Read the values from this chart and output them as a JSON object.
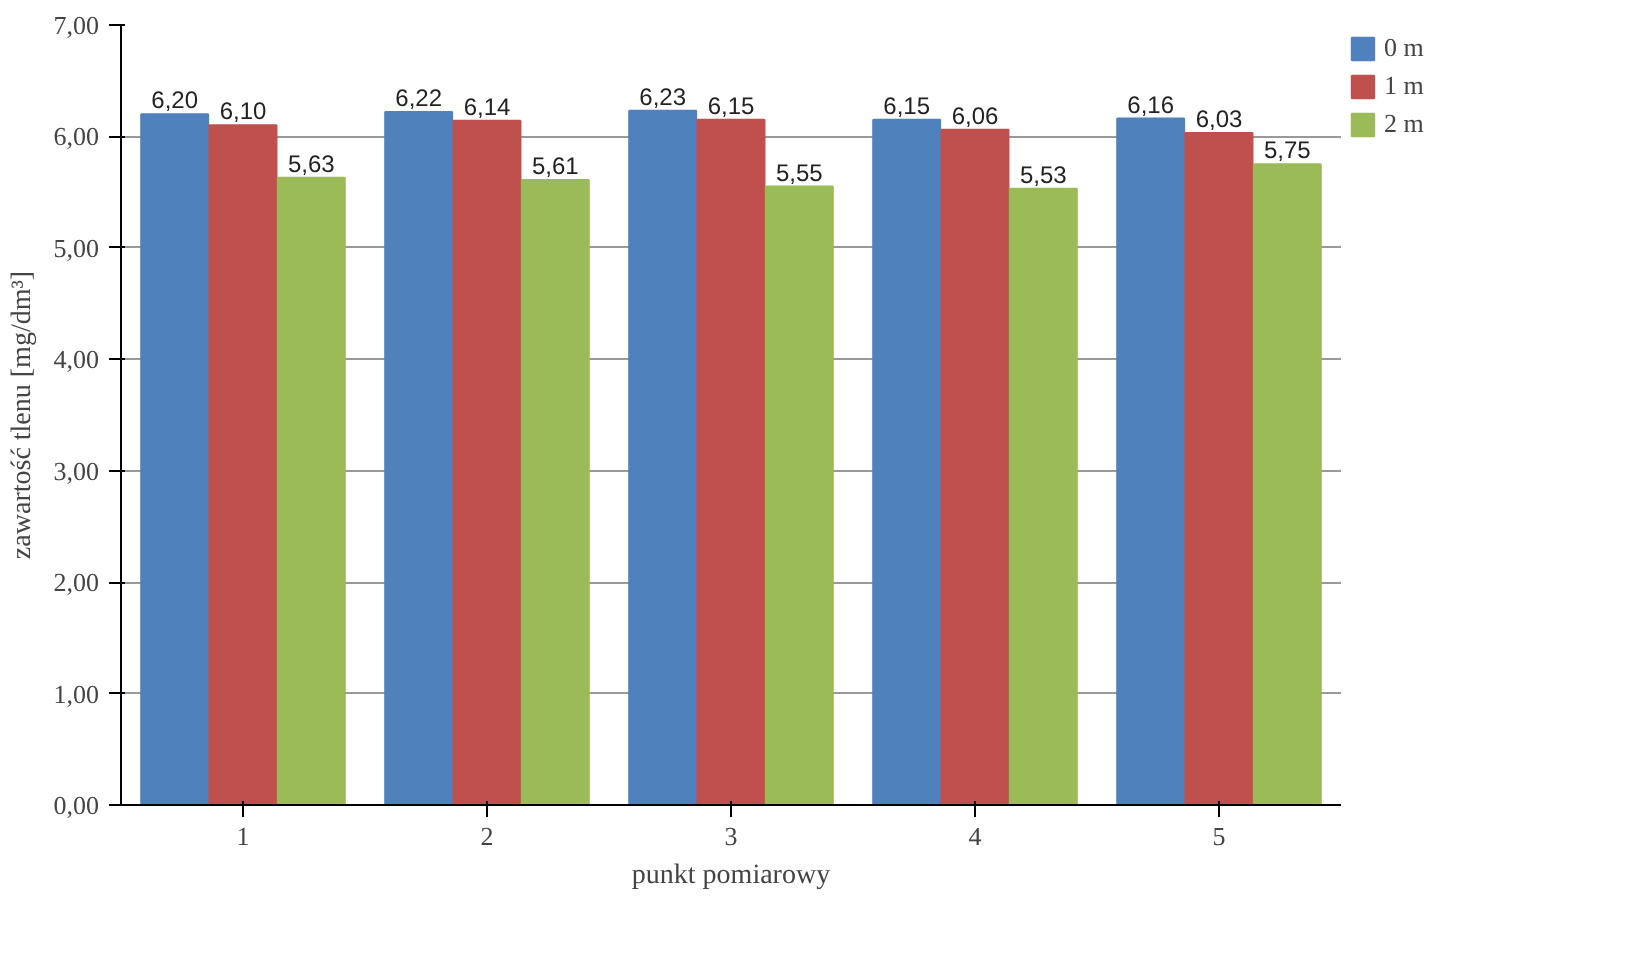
{
  "chart_data": {
    "type": "bar",
    "xlabel": "punkt pomiarowy",
    "ylabel": "zawartość tlenu [mg/dm³]",
    "categories": [
      "1",
      "2",
      "3",
      "4",
      "5"
    ],
    "series": [
      {
        "name": "0 m",
        "color": "#4f81bd",
        "values": [
          6.2,
          6.22,
          6.23,
          6.15,
          6.16
        ],
        "value_labels": [
          "6,20",
          "6,22",
          "6,23",
          "6,15",
          "6,16"
        ]
      },
      {
        "name": "1 m",
        "color": "#c0504d",
        "values": [
          6.1,
          6.14,
          6.15,
          6.06,
          6.03
        ],
        "value_labels": [
          "6,10",
          "6,14",
          "6,15",
          "6,06",
          "6,03"
        ]
      },
      {
        "name": "2 m",
        "color": "#9bbb59",
        "values": [
          5.63,
          5.61,
          5.55,
          5.53,
          5.75
        ],
        "value_labels": [
          "5,63",
          "5,61",
          "5,55",
          "5,53",
          "5,75"
        ]
      }
    ],
    "ylim": [
      0,
      7
    ],
    "yticks": [
      {
        "value": 0,
        "label": "0,00"
      },
      {
        "value": 1,
        "label": "1,00"
      },
      {
        "value": 2,
        "label": "2,00"
      },
      {
        "value": 3,
        "label": "3,00"
      },
      {
        "value": 4,
        "label": "4,00"
      },
      {
        "value": 5,
        "label": "5,00"
      },
      {
        "value": 6,
        "label": "6,00"
      },
      {
        "value": 7,
        "label": "7,00"
      }
    ],
    "grid": "y",
    "legend": "right"
  }
}
